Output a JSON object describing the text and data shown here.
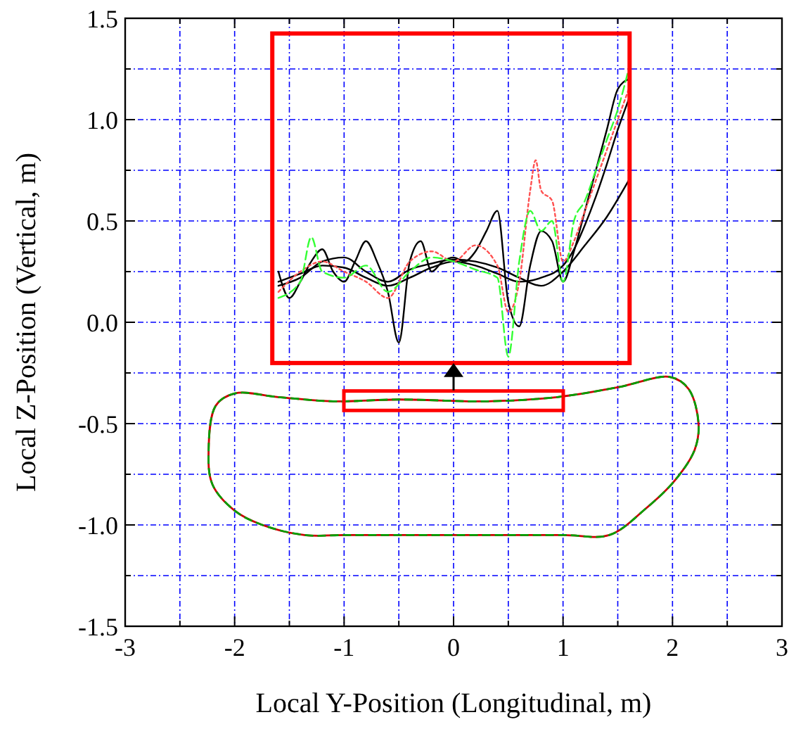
{
  "chart_data": {
    "type": "line",
    "xlabel": "Local Y-Position (Longitudinal, m)",
    "ylabel": "Local Z-Position (Vertical, m)",
    "xlim": [
      -3,
      3
    ],
    "ylim": [
      -1.5,
      1.5
    ],
    "xticks": [
      -3,
      {
        "value": -2.5,
        "label": null
      },
      -2,
      {
        "value": -1.5,
        "label": null
      },
      -1,
      {
        "value": -0.5,
        "label": null
      },
      0,
      {
        "value": 0.5,
        "label": null
      },
      1,
      {
        "value": 1.5,
        "label": null
      },
      2,
      {
        "value": 2.5,
        "label": null
      },
      3
    ],
    "yticks": [
      {
        "value": -1.5,
        "label": "-1.5"
      },
      {
        "value": -1.25,
        "label": null
      },
      {
        "value": -1.0,
        "label": "-1.0"
      },
      {
        "value": -0.75,
        "label": null
      },
      {
        "value": -0.5,
        "label": "-0.5"
      },
      {
        "value": -0.25,
        "label": null
      },
      {
        "value": 0.0,
        "label": "0.0"
      },
      {
        "value": 0.25,
        "label": null
      },
      {
        "value": 0.5,
        "label": "0.5"
      },
      {
        "value": 0.75,
        "label": null
      },
      {
        "value": 1.0,
        "label": "1.0"
      },
      {
        "value": 1.25,
        "label": null
      },
      {
        "value": 1.5,
        "label": "1.5"
      }
    ],
    "grid": true,
    "marker": "none",
    "series": [
      {
        "color": "#000000",
        "line_style": "solid",
        "x": [
          -1.6,
          -1.4,
          -1.2,
          -1.0,
          -0.8,
          -0.6,
          -0.4,
          -0.2,
          0,
          0.2,
          0.4,
          0.6,
          0.8,
          1.0,
          1.1,
          1.2,
          1.3,
          1.4,
          1.5,
          1.6
        ],
        "values": [
          0.2,
          0.24,
          0.28,
          0.27,
          0.22,
          0.18,
          0.22,
          0.27,
          0.3,
          0.28,
          0.24,
          0.2,
          0.22,
          0.28,
          0.36,
          0.48,
          0.62,
          0.78,
          0.95,
          1.1
        ]
      },
      {
        "color": "#000000",
        "line_style": "solid",
        "x": [
          -1.6,
          -1.5,
          -1.4,
          -1.3,
          -1.2,
          -1.1,
          -1.0,
          -0.9,
          -0.8,
          -0.7,
          -0.6,
          -0.5,
          -0.4,
          -0.3,
          -0.2,
          -0.1,
          0,
          0.1,
          0.2,
          0.3,
          0.4,
          0.5,
          0.6,
          0.7,
          0.8,
          0.9,
          1.0,
          1.1,
          1.2,
          1.3,
          1.4,
          1.5,
          1.6
        ],
        "values": [
          0.25,
          0.12,
          0.2,
          0.3,
          0.36,
          0.25,
          0.2,
          0.3,
          0.4,
          0.3,
          0.15,
          -0.1,
          0.3,
          0.4,
          0.25,
          0.3,
          0.32,
          0.3,
          0.35,
          0.45,
          0.55,
          0.1,
          -0.02,
          0.28,
          0.45,
          0.4,
          0.2,
          0.35,
          0.55,
          0.75,
          0.95,
          1.15,
          1.2
        ]
      },
      {
        "color": "#000000",
        "line_style": "solid",
        "x": [
          -1.6,
          -1.4,
          -1.2,
          -1.0,
          -0.8,
          -0.6,
          -0.4,
          -0.2,
          0,
          0.2,
          0.4,
          0.6,
          0.8,
          1.0,
          1.2,
          1.4,
          1.6
        ],
        "values": [
          0.18,
          0.22,
          0.3,
          0.32,
          0.25,
          0.2,
          0.26,
          0.29,
          0.31,
          0.3,
          0.27,
          0.22,
          0.18,
          0.25,
          0.38,
          0.52,
          0.7
        ]
      },
      {
        "color": "#ff5050",
        "line_style": "dotted",
        "x": [
          -1.6,
          -1.4,
          -1.2,
          -1.0,
          -0.8,
          -0.6,
          -0.4,
          -0.2,
          0,
          0.2,
          0.4,
          0.5,
          0.6,
          0.7,
          0.75,
          0.8,
          0.9,
          1.0,
          1.1,
          1.2,
          1.3,
          1.4,
          1.5,
          1.6
        ],
        "values": [
          0.15,
          0.25,
          0.3,
          0.25,
          0.2,
          0.12,
          0.3,
          0.35,
          0.3,
          0.38,
          0.28,
          0.05,
          0.2,
          0.65,
          0.8,
          0.65,
          0.6,
          0.3,
          0.4,
          0.55,
          0.7,
          0.85,
          1.0,
          1.15
        ]
      },
      {
        "color": "#33ff33",
        "line_style": "dashed",
        "x": [
          -1.6,
          -1.4,
          -1.3,
          -1.2,
          -1.0,
          -0.8,
          -0.6,
          -0.4,
          -0.2,
          0,
          0.2,
          0.4,
          0.5,
          0.6,
          0.7,
          0.8,
          0.9,
          1.0,
          1.1,
          1.2,
          1.3,
          1.4,
          1.5,
          1.6
        ],
        "values": [
          0.12,
          0.2,
          0.42,
          0.25,
          0.22,
          0.28,
          0.15,
          0.25,
          0.32,
          0.3,
          0.26,
          0.22,
          -0.17,
          0.3,
          0.55,
          0.45,
          0.5,
          0.2,
          0.5,
          0.6,
          0.75,
          0.9,
          1.05,
          1.25
        ]
      }
    ]
  }
}
